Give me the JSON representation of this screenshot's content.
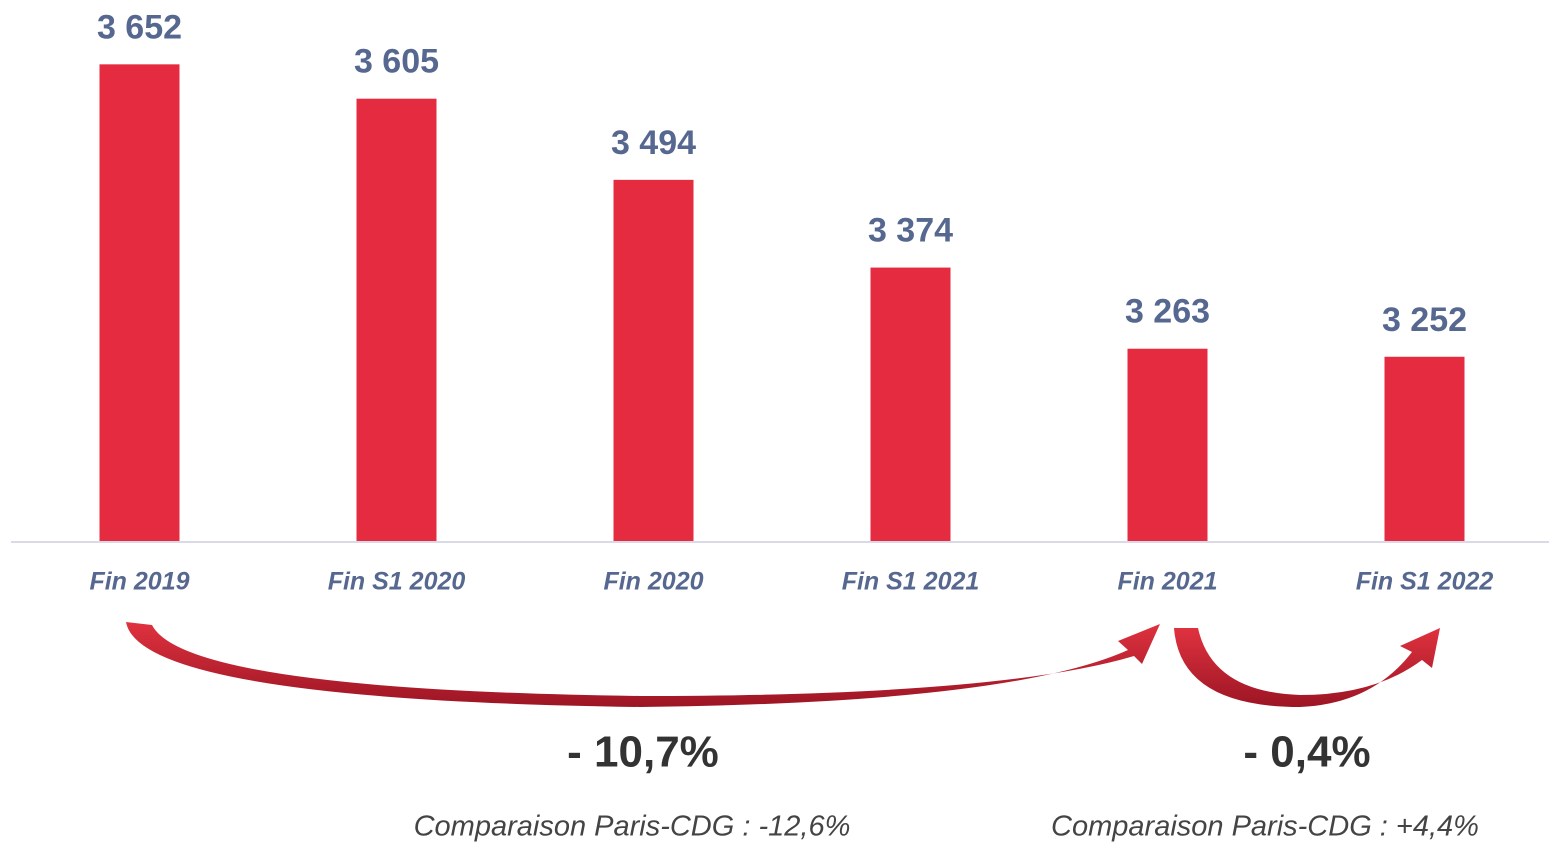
{
  "chart_data": {
    "type": "bar",
    "categories": [
      "Fin 2019",
      "Fin S1 2020",
      "Fin 2020",
      "Fin S1 2021",
      "Fin 2021",
      "Fin S1 2022"
    ],
    "values": [
      3652,
      3605,
      3494,
      3374,
      3263,
      3252
    ],
    "value_labels": [
      "3 652",
      "3 605",
      "3 494",
      "3 374",
      "3 263",
      "3 252"
    ],
    "color": "#e52b40",
    "ylim": [
      3000,
      3740
    ],
    "annotations": [
      "- 10,7%",
      "- 0,4%",
      "Comparaison Paris-CDG : -12,6%",
      "Comparaison Paris-CDG : +4,4%"
    ]
  }
}
